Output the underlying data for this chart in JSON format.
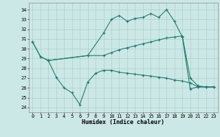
{
  "title": "",
  "xlabel": "Humidex (Indice chaleur)",
  "bg_color": "#cce8e6",
  "grid_color": "#aacfcc",
  "line_color": "#1a7a6e",
  "xlim": [
    -0.5,
    23.5
  ],
  "ylim": [
    23.5,
    34.7
  ],
  "yticks": [
    24,
    25,
    26,
    27,
    28,
    29,
    30,
    31,
    32,
    33,
    34
  ],
  "xticks": [
    0,
    1,
    2,
    3,
    4,
    5,
    6,
    7,
    8,
    9,
    10,
    11,
    12,
    13,
    14,
    15,
    16,
    17,
    18,
    19,
    20,
    21,
    22,
    23
  ],
  "line1_x": [
    0,
    1,
    2,
    7,
    9,
    10,
    11,
    12,
    13,
    14,
    15,
    16,
    17,
    18,
    19,
    20,
    21,
    22,
    23
  ],
  "line1_y": [
    30.7,
    29.2,
    28.8,
    29.3,
    31.6,
    33.0,
    33.4,
    32.8,
    33.1,
    33.2,
    33.6,
    33.2,
    34.0,
    32.8,
    31.2,
    25.9,
    26.1,
    26.1,
    26.1
  ],
  "line2_x": [
    0,
    1,
    2,
    7,
    9,
    10,
    11,
    12,
    13,
    14,
    15,
    16,
    17,
    18,
    19,
    20,
    21,
    22,
    23
  ],
  "line2_y": [
    30.7,
    29.2,
    28.8,
    29.3,
    29.3,
    29.6,
    29.9,
    30.1,
    30.3,
    30.5,
    30.7,
    30.9,
    31.1,
    31.2,
    31.3,
    27.0,
    26.2,
    26.1,
    26.1
  ],
  "line3_x": [
    2,
    3,
    4,
    5,
    6,
    7,
    8,
    9,
    10,
    11,
    12,
    13,
    14,
    15,
    16,
    17,
    18,
    19,
    20,
    21,
    22,
    23
  ],
  "line3_y": [
    28.8,
    27.1,
    26.0,
    25.5,
    24.3,
    26.6,
    27.5,
    27.8,
    27.8,
    27.6,
    27.5,
    27.4,
    27.3,
    27.2,
    27.1,
    27.0,
    26.8,
    26.7,
    26.5,
    26.1,
    26.1,
    26.1
  ],
  "tick_fontsize": 5.0,
  "xlabel_fontsize": 6.0,
  "lw": 0.8,
  "marker_size": 2.5
}
